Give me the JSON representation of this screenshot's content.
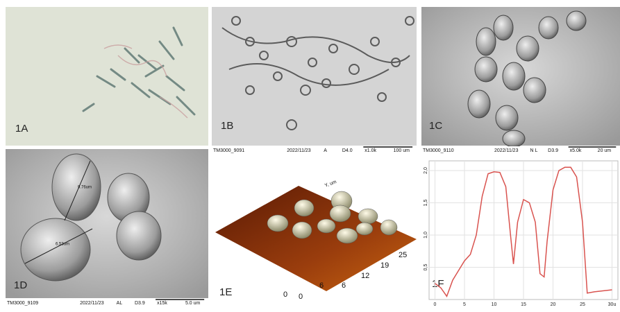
{
  "panels": {
    "a": {
      "label": "1A"
    },
    "b": {
      "label": "1B",
      "info": [
        "TM3000_9091",
        "2022/11/23",
        "A",
        "D4.0",
        "x1.0k",
        "100 um"
      ]
    },
    "c": {
      "label": "1C",
      "info": [
        "TM3000_9110",
        "2022/11/23",
        "N L",
        "D3.9",
        "x5.0k",
        "20 um"
      ]
    },
    "d": {
      "label": "1D",
      "info": [
        "TM3000_9109",
        "2022/11/23",
        "AL",
        "D3.9",
        "x15k",
        "5.0 um"
      ],
      "measurements": [
        "9.76um",
        "6.53um"
      ]
    },
    "e": {
      "label": "1E",
      "axis_title": "Y, um",
      "y_ticks": [
        "0",
        "6",
        "12",
        "19",
        "25"
      ],
      "x_ticks": [
        "0",
        "6"
      ]
    },
    "f": {
      "label": "1F",
      "chart": {
        "type": "line",
        "color": "#d9534f",
        "x": [
          0,
          1,
          2,
          3,
          4,
          5,
          6,
          7,
          8,
          9,
          10,
          11,
          12,
          12.8,
          13.3,
          14,
          15,
          16,
          17,
          17.8,
          18.5,
          19,
          20,
          21,
          22,
          23,
          24,
          25,
          25.8,
          27,
          30
        ],
        "values": [
          0.25,
          0.18,
          0.05,
          0.3,
          0.45,
          0.6,
          0.7,
          1.0,
          1.6,
          1.95,
          1.98,
          1.97,
          1.75,
          1.0,
          0.55,
          1.2,
          1.55,
          1.5,
          1.2,
          0.4,
          0.35,
          0.9,
          1.7,
          2.0,
          2.05,
          2.05,
          1.9,
          1.2,
          0.1,
          0.12,
          0.15
        ],
        "xlim": [
          -1,
          31
        ],
        "ylim": [
          0,
          2.15
        ],
        "xticks": [
          0,
          5,
          10,
          15,
          20,
          25,
          {
            "value": 30,
            "label": "30u"
          }
        ],
        "yticks": [
          {
            "value": 0.5,
            "label": "0,5"
          },
          {
            "value": 1,
            "label": "1,0"
          },
          {
            "value": 1.5,
            "label": "1,5"
          },
          {
            "value": 2,
            "label": "2,0"
          }
        ],
        "grid": true
      }
    }
  }
}
